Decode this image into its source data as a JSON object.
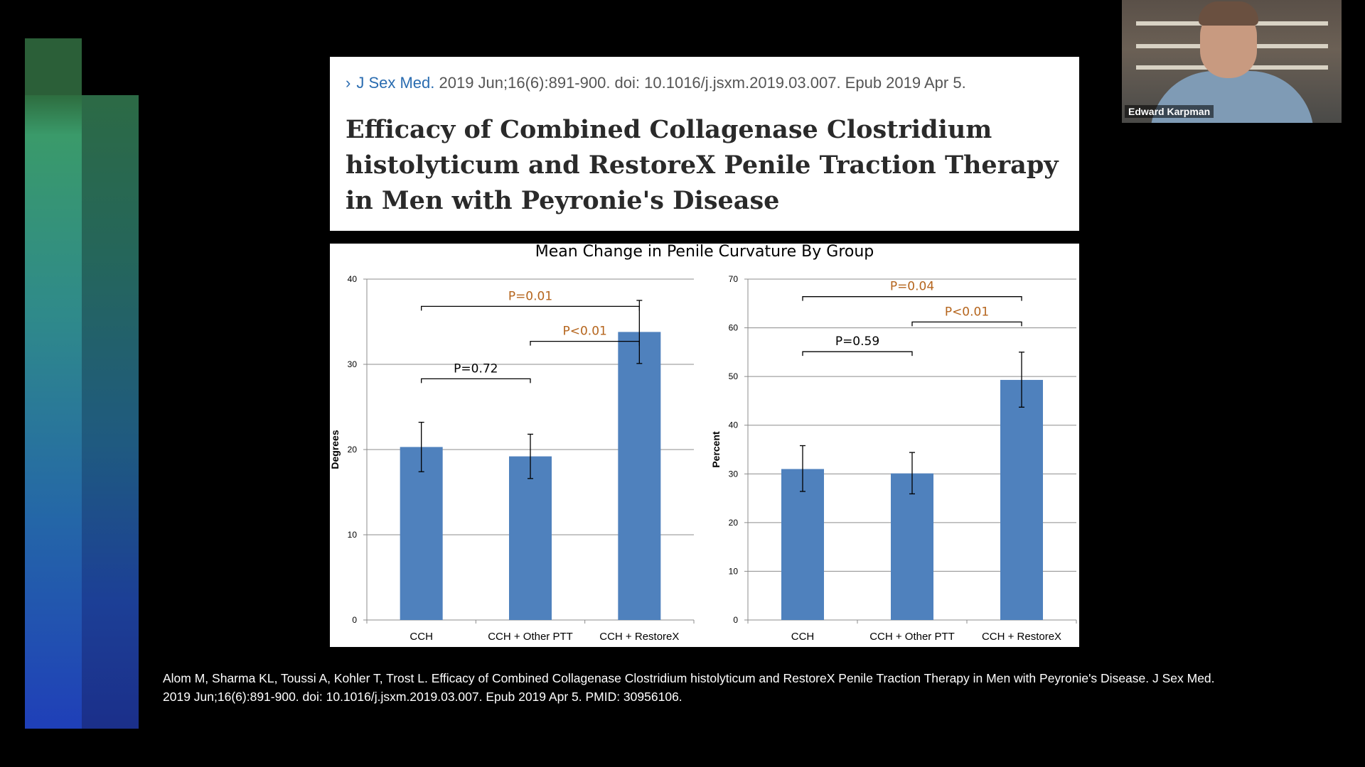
{
  "header": {
    "chevron": "›",
    "journal": "J Sex Med.",
    "citation": " 2019 Jun;16(6):891-900. doi: 10.1016/j.jsxm.2019.03.007. Epub 2019 Apr 5.",
    "title": "Efficacy of Combined Collagenase Clostridium histolyticum and RestoreX Penile Traction Therapy in Men with Peyronie's Disease"
  },
  "chart_title": "Mean Change in Penile Curvature By Group",
  "chart_data": [
    {
      "type": "bar",
      "categories": [
        "CCH",
        "CCH + Other PTT",
        "CCH + RestoreX"
      ],
      "values": [
        20.3,
        19.2,
        33.8
      ],
      "error_low": [
        17.4,
        16.6,
        30.1
      ],
      "error_high": [
        23.2,
        21.8,
        37.5
      ],
      "ylabel": "Degrees",
      "ylim": [
        0,
        40
      ],
      "yticks": [
        0,
        10,
        20,
        30,
        40
      ],
      "grid": true,
      "bar_color": "#4f81bd",
      "annotations": [
        {
          "label": "P=0.72",
          "from": 0,
          "to": 1,
          "level": 28.3,
          "color": "#000000"
        },
        {
          "label": "P<0.01",
          "from": 1,
          "to": 2,
          "level": 32.7,
          "color": "#b5651d"
        },
        {
          "label": "P=0.01",
          "from": 0,
          "to": 2,
          "level": 36.8,
          "color": "#b5651d"
        }
      ]
    },
    {
      "type": "bar",
      "categories": [
        "CCH",
        "CCH + Other PTT",
        "CCH + RestoreX"
      ],
      "values": [
        31.0,
        30.1,
        49.3
      ],
      "error_low": [
        26.4,
        25.9,
        43.7
      ],
      "error_high": [
        35.8,
        34.4,
        55.0
      ],
      "ylabel": "Percent",
      "ylim": [
        0,
        70
      ],
      "yticks": [
        0,
        10,
        20,
        30,
        40,
        50,
        60,
        70
      ],
      "grid": true,
      "bar_color": "#4f81bd",
      "annotations": [
        {
          "label": "P=0.59",
          "from": 0,
          "to": 1,
          "level": 55.1,
          "color": "#000000"
        },
        {
          "label": "P<0.01",
          "from": 1,
          "to": 2,
          "level": 61.2,
          "color": "#b5651d"
        },
        {
          "label": "P=0.04",
          "from": 0,
          "to": 2,
          "level": 66.4,
          "color": "#b5651d"
        }
      ]
    }
  ],
  "footer": {
    "citation": "Alom M, Sharma KL, Toussi A, Kohler T, Trost L. Efficacy of Combined Collagenase Clostridium histolyticum and RestoreX Penile Traction Therapy in Men with Peyronie's Disease. J Sex Med. 2019 Jun;16(6):891-900. doi: 10.1016/j.jsxm.2019.03.007. Epub 2019 Apr 5. PMID: 30956106."
  },
  "webcam": {
    "participant_name": "Edward Karpman"
  }
}
